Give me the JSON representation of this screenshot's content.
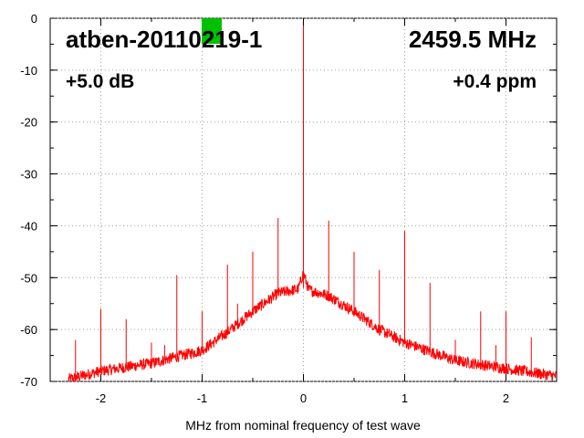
{
  "chart_data": {
    "type": "line",
    "title": "atben-20110219-1",
    "frequency_label": "2459.5 MHz",
    "gain_label": "+5.0 dB",
    "ppm_label": "+0.4 ppm",
    "xlabel": "MHz from nominal frequency of test wave",
    "ylabel": "",
    "xlim": [
      -2.5,
      2.5
    ],
    "ylim": [
      -70,
      0
    ],
    "x_ticks": [
      -2,
      -1,
      0,
      1,
      2
    ],
    "x_tick_labels": [
      "-2",
      "-1",
      "0",
      "1",
      "2"
    ],
    "y_ticks": [
      0,
      -10,
      -20,
      -30,
      -40,
      -50,
      -60,
      -70
    ],
    "y_tick_labels": [
      "0",
      "-10",
      "-20",
      "-30",
      "-40",
      "-50",
      "-60",
      "-70"
    ],
    "grid": true,
    "series": [
      {
        "color": "#ff0000",
        "noise_floor": [
          [
            -2.3,
            -69.5
          ],
          [
            -2.0,
            -68.0
          ],
          [
            -1.5,
            -66.5
          ],
          [
            -1.0,
            -64.0
          ],
          [
            -0.75,
            -60.5
          ],
          [
            -0.5,
            -56.5
          ],
          [
            -0.25,
            -53.0
          ],
          [
            0.0,
            -52.0
          ],
          [
            0.25,
            -53.5
          ],
          [
            0.5,
            -56.5
          ],
          [
            0.75,
            -60.0
          ],
          [
            1.0,
            -62.5
          ],
          [
            1.5,
            -66.0
          ],
          [
            2.0,
            -67.5
          ],
          [
            2.5,
            -69.0
          ]
        ],
        "spurs": [
          {
            "x": -2.25,
            "y": -62
          },
          {
            "x": -2.0,
            "y": -56
          },
          {
            "x": -1.75,
            "y": -58
          },
          {
            "x": -1.5,
            "y": -62.5
          },
          {
            "x": -1.37,
            "y": -63
          },
          {
            "x": -1.25,
            "y": -49.5
          },
          {
            "x": -1.1,
            "y": -64
          },
          {
            "x": -1.0,
            "y": -56.5
          },
          {
            "x": -0.75,
            "y": -47.5
          },
          {
            "x": -0.65,
            "y": -55
          },
          {
            "x": -0.5,
            "y": -45
          },
          {
            "x": -0.25,
            "y": -38.5
          },
          {
            "x": 0.0,
            "y": 0
          },
          {
            "x": 0.25,
            "y": -39
          },
          {
            "x": 0.5,
            "y": -45
          },
          {
            "x": 0.75,
            "y": -48.5
          },
          {
            "x": 1.0,
            "y": -41
          },
          {
            "x": 1.12,
            "y": -63.5
          },
          {
            "x": 1.25,
            "y": -51
          },
          {
            "x": 1.5,
            "y": -62
          },
          {
            "x": 1.75,
            "y": -56.5
          },
          {
            "x": 1.9,
            "y": -63
          },
          {
            "x": 2.0,
            "y": -56.5
          },
          {
            "x": 2.25,
            "y": -61.5
          }
        ]
      }
    ]
  },
  "marker": {
    "color": "#00c000"
  }
}
